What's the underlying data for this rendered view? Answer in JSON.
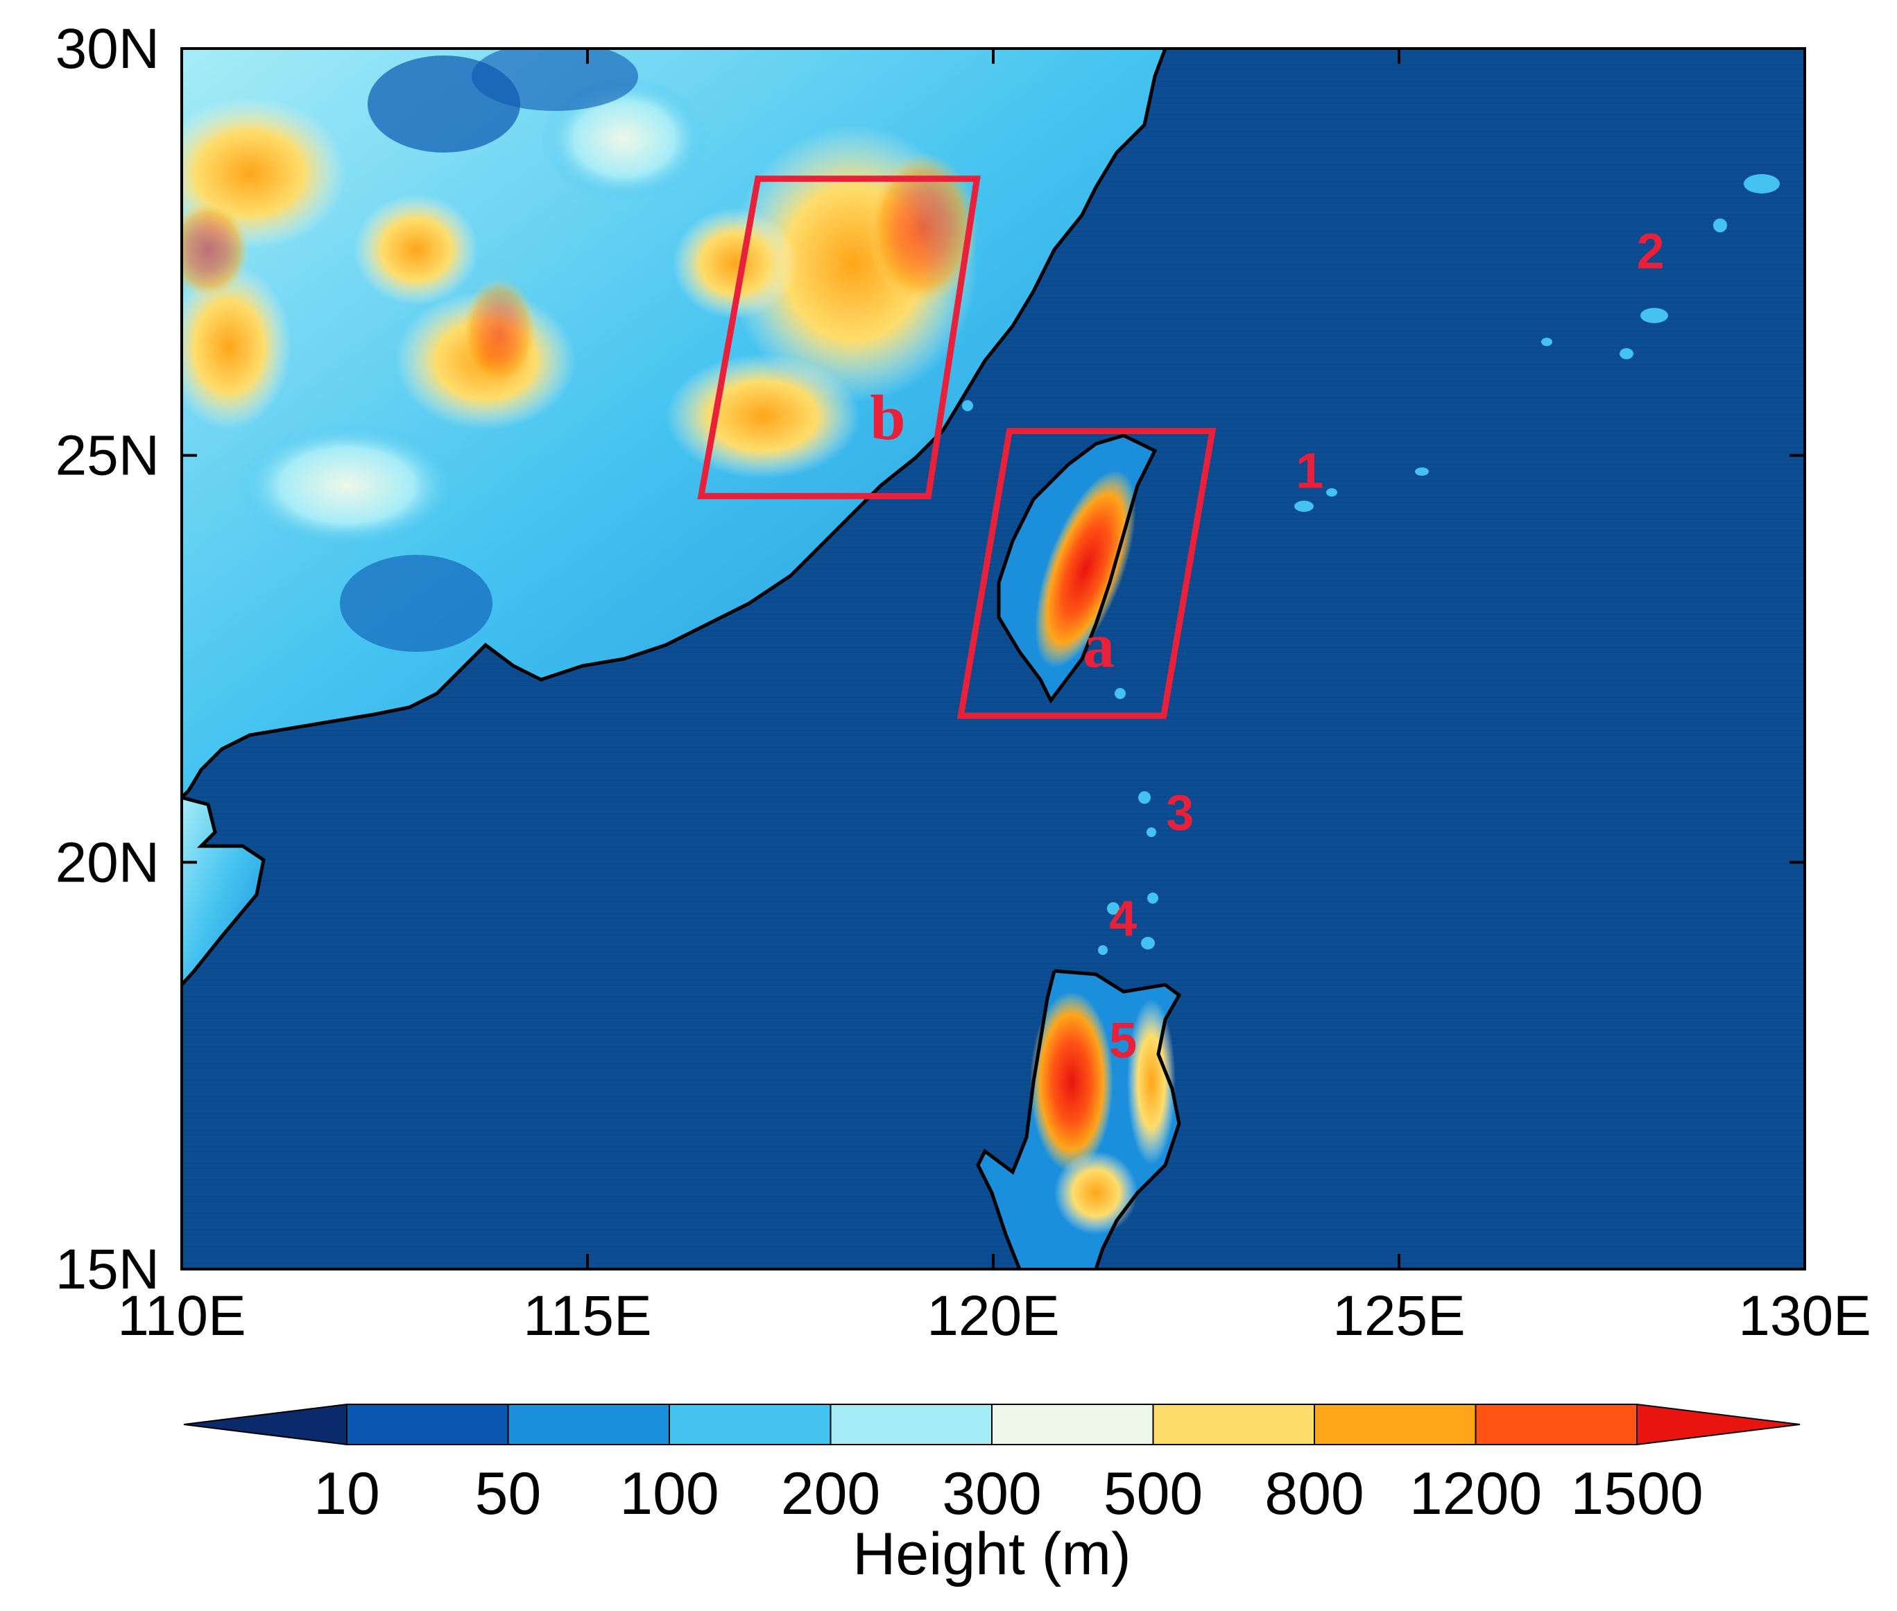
{
  "map": {
    "lon_range": [
      110,
      130
    ],
    "lat_range": [
      15,
      30
    ],
    "x_ticks": [
      "110E",
      "115E",
      "120E",
      "125E",
      "130E"
    ],
    "y_ticks": [
      "15N",
      "20N",
      "25N",
      "30N"
    ],
    "x_tick_values": [
      110,
      115,
      120,
      125,
      130
    ],
    "y_tick_values": [
      15,
      20,
      25,
      30
    ],
    "ocean_color": "#0b4a8f",
    "coastline_color": "#000000",
    "box_color": "#e8203a",
    "regions": [
      {
        "label": "a",
        "corners": [
          [
            120.2,
            25.3
          ],
          [
            122.7,
            25.3
          ],
          [
            122.1,
            21.8
          ],
          [
            119.6,
            21.8
          ]
        ],
        "label_pos": [
          121.3,
          22.4
        ]
      },
      {
        "label": "b",
        "corners": [
          [
            117.1,
            28.4
          ],
          [
            119.8,
            28.4
          ],
          [
            119.2,
            24.5
          ],
          [
            116.4,
            24.5
          ]
        ],
        "label_pos": [
          118.7,
          25.2
        ]
      }
    ],
    "markers": [
      {
        "label": "1",
        "lon": 123.9,
        "lat": 24.6
      },
      {
        "label": "2",
        "lon": 128.1,
        "lat": 27.3
      },
      {
        "label": "3",
        "lon": 122.3,
        "lat": 20.4
      },
      {
        "label": "4",
        "lon": 121.6,
        "lat": 19.1
      },
      {
        "label": "5",
        "lon": 121.6,
        "lat": 17.6
      }
    ]
  },
  "colorbar": {
    "title": "Height (m)",
    "labels": [
      "10",
      "50",
      "100",
      "200",
      "300",
      "500",
      "800",
      "1200",
      "1500"
    ],
    "colors": [
      "#0a2a6b",
      "#0b58b0",
      "#1b8fdc",
      "#44c3f0",
      "#a6ecf7",
      "#eef8ea",
      "#ffdd6b",
      "#ffa51a",
      "#ff5414",
      "#e8140f"
    ]
  }
}
